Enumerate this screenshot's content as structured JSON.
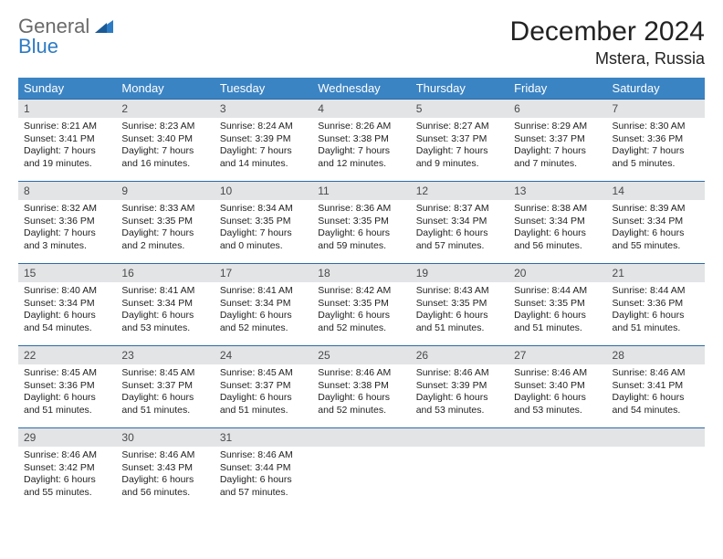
{
  "brand": {
    "line1": "General",
    "line2": "Blue"
  },
  "colors": {
    "header_bg": "#3b84c4",
    "week_border": "#2d6aa8",
    "daynum_bg": "#e2e4e6",
    "logo_gray": "#6a6a6a",
    "logo_blue": "#2d7bc4",
    "text": "#222222"
  },
  "title": {
    "month": "December 2024",
    "location": "Mstera, Russia"
  },
  "day_headers": [
    "Sunday",
    "Monday",
    "Tuesday",
    "Wednesday",
    "Thursday",
    "Friday",
    "Saturday"
  ],
  "weeks": [
    [
      {
        "n": "1",
        "sr": "Sunrise: 8:21 AM",
        "ss": "Sunset: 3:41 PM",
        "dl": "Daylight: 7 hours and 19 minutes."
      },
      {
        "n": "2",
        "sr": "Sunrise: 8:23 AM",
        "ss": "Sunset: 3:40 PM",
        "dl": "Daylight: 7 hours and 16 minutes."
      },
      {
        "n": "3",
        "sr": "Sunrise: 8:24 AM",
        "ss": "Sunset: 3:39 PM",
        "dl": "Daylight: 7 hours and 14 minutes."
      },
      {
        "n": "4",
        "sr": "Sunrise: 8:26 AM",
        "ss": "Sunset: 3:38 PM",
        "dl": "Daylight: 7 hours and 12 minutes."
      },
      {
        "n": "5",
        "sr": "Sunrise: 8:27 AM",
        "ss": "Sunset: 3:37 PM",
        "dl": "Daylight: 7 hours and 9 minutes."
      },
      {
        "n": "6",
        "sr": "Sunrise: 8:29 AM",
        "ss": "Sunset: 3:37 PM",
        "dl": "Daylight: 7 hours and 7 minutes."
      },
      {
        "n": "7",
        "sr": "Sunrise: 8:30 AM",
        "ss": "Sunset: 3:36 PM",
        "dl": "Daylight: 7 hours and 5 minutes."
      }
    ],
    [
      {
        "n": "8",
        "sr": "Sunrise: 8:32 AM",
        "ss": "Sunset: 3:36 PM",
        "dl": "Daylight: 7 hours and 3 minutes."
      },
      {
        "n": "9",
        "sr": "Sunrise: 8:33 AM",
        "ss": "Sunset: 3:35 PM",
        "dl": "Daylight: 7 hours and 2 minutes."
      },
      {
        "n": "10",
        "sr": "Sunrise: 8:34 AM",
        "ss": "Sunset: 3:35 PM",
        "dl": "Daylight: 7 hours and 0 minutes."
      },
      {
        "n": "11",
        "sr": "Sunrise: 8:36 AM",
        "ss": "Sunset: 3:35 PM",
        "dl": "Daylight: 6 hours and 59 minutes."
      },
      {
        "n": "12",
        "sr": "Sunrise: 8:37 AM",
        "ss": "Sunset: 3:34 PM",
        "dl": "Daylight: 6 hours and 57 minutes."
      },
      {
        "n": "13",
        "sr": "Sunrise: 8:38 AM",
        "ss": "Sunset: 3:34 PM",
        "dl": "Daylight: 6 hours and 56 minutes."
      },
      {
        "n": "14",
        "sr": "Sunrise: 8:39 AM",
        "ss": "Sunset: 3:34 PM",
        "dl": "Daylight: 6 hours and 55 minutes."
      }
    ],
    [
      {
        "n": "15",
        "sr": "Sunrise: 8:40 AM",
        "ss": "Sunset: 3:34 PM",
        "dl": "Daylight: 6 hours and 54 minutes."
      },
      {
        "n": "16",
        "sr": "Sunrise: 8:41 AM",
        "ss": "Sunset: 3:34 PM",
        "dl": "Daylight: 6 hours and 53 minutes."
      },
      {
        "n": "17",
        "sr": "Sunrise: 8:41 AM",
        "ss": "Sunset: 3:34 PM",
        "dl": "Daylight: 6 hours and 52 minutes."
      },
      {
        "n": "18",
        "sr": "Sunrise: 8:42 AM",
        "ss": "Sunset: 3:35 PM",
        "dl": "Daylight: 6 hours and 52 minutes."
      },
      {
        "n": "19",
        "sr": "Sunrise: 8:43 AM",
        "ss": "Sunset: 3:35 PM",
        "dl": "Daylight: 6 hours and 51 minutes."
      },
      {
        "n": "20",
        "sr": "Sunrise: 8:44 AM",
        "ss": "Sunset: 3:35 PM",
        "dl": "Daylight: 6 hours and 51 minutes."
      },
      {
        "n": "21",
        "sr": "Sunrise: 8:44 AM",
        "ss": "Sunset: 3:36 PM",
        "dl": "Daylight: 6 hours and 51 minutes."
      }
    ],
    [
      {
        "n": "22",
        "sr": "Sunrise: 8:45 AM",
        "ss": "Sunset: 3:36 PM",
        "dl": "Daylight: 6 hours and 51 minutes."
      },
      {
        "n": "23",
        "sr": "Sunrise: 8:45 AM",
        "ss": "Sunset: 3:37 PM",
        "dl": "Daylight: 6 hours and 51 minutes."
      },
      {
        "n": "24",
        "sr": "Sunrise: 8:45 AM",
        "ss": "Sunset: 3:37 PM",
        "dl": "Daylight: 6 hours and 51 minutes."
      },
      {
        "n": "25",
        "sr": "Sunrise: 8:46 AM",
        "ss": "Sunset: 3:38 PM",
        "dl": "Daylight: 6 hours and 52 minutes."
      },
      {
        "n": "26",
        "sr": "Sunrise: 8:46 AM",
        "ss": "Sunset: 3:39 PM",
        "dl": "Daylight: 6 hours and 53 minutes."
      },
      {
        "n": "27",
        "sr": "Sunrise: 8:46 AM",
        "ss": "Sunset: 3:40 PM",
        "dl": "Daylight: 6 hours and 53 minutes."
      },
      {
        "n": "28",
        "sr": "Sunrise: 8:46 AM",
        "ss": "Sunset: 3:41 PM",
        "dl": "Daylight: 6 hours and 54 minutes."
      }
    ],
    [
      {
        "n": "29",
        "sr": "Sunrise: 8:46 AM",
        "ss": "Sunset: 3:42 PM",
        "dl": "Daylight: 6 hours and 55 minutes."
      },
      {
        "n": "30",
        "sr": "Sunrise: 8:46 AM",
        "ss": "Sunset: 3:43 PM",
        "dl": "Daylight: 6 hours and 56 minutes."
      },
      {
        "n": "31",
        "sr": "Sunrise: 8:46 AM",
        "ss": "Sunset: 3:44 PM",
        "dl": "Daylight: 6 hours and 57 minutes."
      },
      {
        "n": "",
        "sr": "",
        "ss": "",
        "dl": "",
        "empty": true
      },
      {
        "n": "",
        "sr": "",
        "ss": "",
        "dl": "",
        "empty": true
      },
      {
        "n": "",
        "sr": "",
        "ss": "",
        "dl": "",
        "empty": true
      },
      {
        "n": "",
        "sr": "",
        "ss": "",
        "dl": "",
        "empty": true
      }
    ]
  ]
}
